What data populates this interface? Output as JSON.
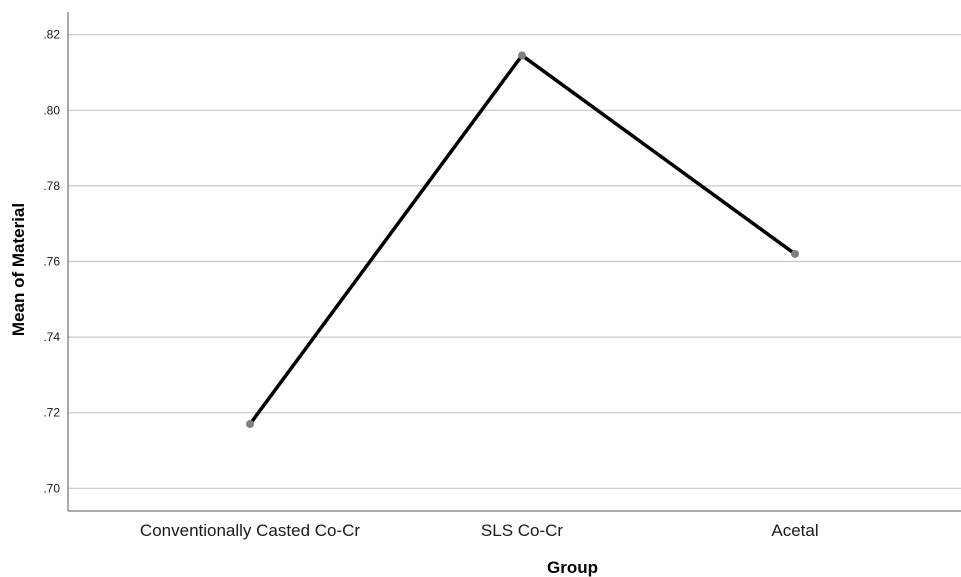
{
  "chart_data": {
    "type": "line",
    "xlabel": "Group",
    "ylabel": "Mean of Material",
    "categories": [
      "Conventionally Casted Co-Cr",
      "SLS Co-Cr",
      "Acetal"
    ],
    "series": [
      {
        "values": [
          0.717,
          0.8145,
          0.762
        ]
      }
    ],
    "ylim": [
      0.694,
      0.826
    ],
    "yticks": [
      0.7,
      0.72,
      0.74,
      0.76,
      0.78,
      0.8,
      0.82
    ],
    "ytick_labels": [
      ".70",
      ".72",
      ".74",
      ".76",
      ".78",
      ".80",
      ".82"
    ],
    "grid": "horizontal",
    "legend": "none",
    "colors": {
      "line": "#000000",
      "marker": "#808080",
      "grid": "#c8c8c8",
      "axis": "#555555"
    }
  }
}
